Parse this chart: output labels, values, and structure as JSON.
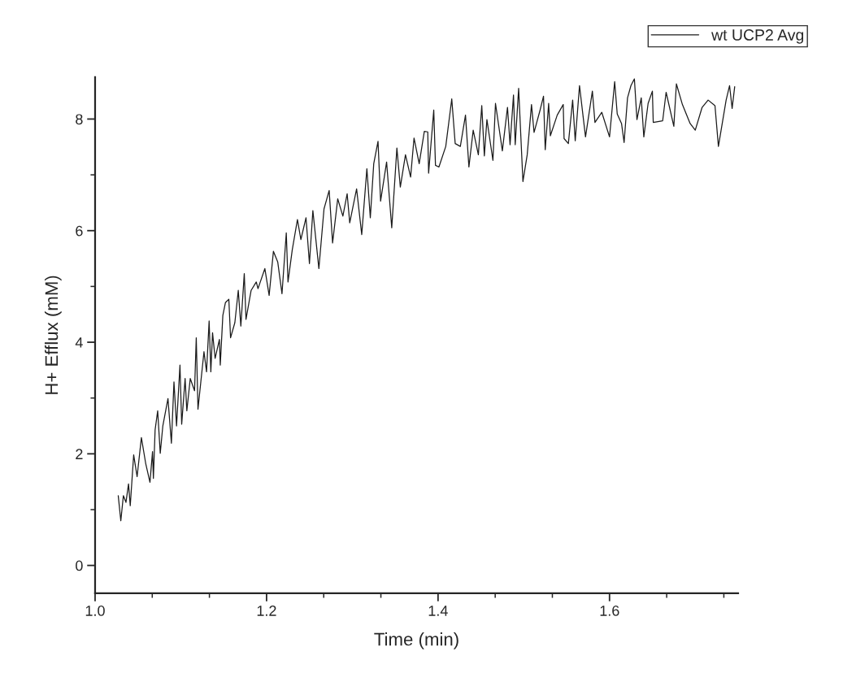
{
  "chart_data": {
    "type": "line",
    "xlabel": "Time (min)",
    "ylabel": "H+ Efflux (mM)",
    "xlim": [
      1.0,
      1.75
    ],
    "ylim": [
      -0.5,
      8.75
    ],
    "xticks": [
      {
        "value": 1.0,
        "label": "1.0"
      },
      {
        "value": 1.2,
        "label": "1.2"
      },
      {
        "value": 1.4,
        "label": "1.4"
      },
      {
        "value": 1.6,
        "label": "1.6"
      }
    ],
    "yticks": [
      0,
      2,
      4,
      6,
      8
    ],
    "grid": false,
    "legend": "top right",
    "series": [
      {
        "name": "wt UCP2 Avg",
        "color": "#1a1a1a",
        "x": [
          1.027,
          1.03,
          1.033,
          1.036,
          1.039,
          1.041,
          1.045,
          1.049,
          1.054,
          1.059,
          1.064,
          1.067,
          1.068,
          1.07,
          1.073,
          1.076,
          1.079,
          1.085,
          1.089,
          1.092,
          1.095,
          1.099,
          1.101,
          1.105,
          1.107,
          1.111,
          1.116,
          1.118,
          1.12,
          1.127,
          1.13,
          1.133,
          1.135,
          1.137,
          1.14,
          1.145,
          1.146,
          1.149,
          1.152,
          1.156,
          1.158,
          1.163,
          1.167,
          1.17,
          1.174,
          1.176,
          1.182,
          1.188,
          1.19,
          1.198,
          1.203,
          1.208,
          1.213,
          1.218,
          1.223,
          1.225,
          1.23,
          1.236,
          1.24,
          1.246,
          1.25,
          1.254,
          1.261,
          1.267,
          1.273,
          1.277,
          1.283,
          1.289,
          1.294,
          1.297,
          1.305,
          1.311,
          1.317,
          1.321,
          1.325,
          1.33,
          1.333,
          1.34,
          1.346,
          1.352,
          1.356,
          1.362,
          1.368,
          1.372,
          1.378,
          1.384,
          1.388,
          1.389,
          1.395,
          1.397,
          1.401,
          1.409,
          1.416,
          1.42,
          1.426,
          1.432,
          1.436,
          1.441,
          1.447,
          1.451,
          1.454,
          1.457,
          1.464,
          1.467,
          1.475,
          1.481,
          1.484,
          1.488,
          1.49,
          1.494,
          1.499,
          1.504,
          1.509,
          1.512,
          1.519,
          1.523,
          1.525,
          1.529,
          1.531,
          1.539,
          1.546,
          1.547,
          1.552,
          1.557,
          1.56,
          1.565,
          1.569,
          1.572,
          1.58,
          1.583,
          1.591,
          1.6,
          1.606,
          1.609,
          1.614,
          1.617,
          1.621,
          1.625,
          1.629,
          1.632,
          1.637,
          1.64,
          1.645,
          1.65,
          1.651,
          1.662,
          1.666,
          1.675,
          1.678,
          1.685,
          1.694,
          1.7,
          1.708,
          1.715,
          1.723,
          1.727,
          1.736,
          1.74,
          1.743,
          1.746
        ],
        "values": [
          1.25,
          0.8,
          1.25,
          1.13,
          1.46,
          1.07,
          1.98,
          1.59,
          2.29,
          1.83,
          1.49,
          2.04,
          1.56,
          2.43,
          2.77,
          2.01,
          2.5,
          2.99,
          2.19,
          3.29,
          2.5,
          3.59,
          2.53,
          3.35,
          2.77,
          3.35,
          3.13,
          4.08,
          2.8,
          3.83,
          3.47,
          4.38,
          3.47,
          4.17,
          3.71,
          4.05,
          3.59,
          4.48,
          4.71,
          4.77,
          4.08,
          4.35,
          4.93,
          4.29,
          5.23,
          4.41,
          4.93,
          5.08,
          4.96,
          5.32,
          4.84,
          5.63,
          5.44,
          4.87,
          5.96,
          5.08,
          5.66,
          6.2,
          5.84,
          6.23,
          5.41,
          6.36,
          5.32,
          6.39,
          6.72,
          5.78,
          6.57,
          6.26,
          6.66,
          6.14,
          6.75,
          5.93,
          7.11,
          6.23,
          7.2,
          7.6,
          6.53,
          7.23,
          6.05,
          7.48,
          6.78,
          7.36,
          6.96,
          7.66,
          7.2,
          7.78,
          7.77,
          7.03,
          8.16,
          7.17,
          7.14,
          7.51,
          8.36,
          7.56,
          7.51,
          8.07,
          7.14,
          7.8,
          7.36,
          8.24,
          7.34,
          7.99,
          7.26,
          8.28,
          7.43,
          8.21,
          7.54,
          8.43,
          7.54,
          8.55,
          6.88,
          7.36,
          8.26,
          7.76,
          8.16,
          8.41,
          7.45,
          8.28,
          7.7,
          8.07,
          8.26,
          7.65,
          7.56,
          8.34,
          7.61,
          8.6,
          8.07,
          7.68,
          8.5,
          7.94,
          8.12,
          7.68,
          8.67,
          8.09,
          7.92,
          7.58,
          8.38,
          8.6,
          8.72,
          7.99,
          8.38,
          7.68,
          8.28,
          8.5,
          7.94,
          7.97,
          8.48,
          7.87,
          8.63,
          8.26,
          7.92,
          7.8,
          8.21,
          8.34,
          8.24,
          7.51,
          8.34,
          8.6,
          8.19,
          8.58
        ]
      }
    ]
  }
}
